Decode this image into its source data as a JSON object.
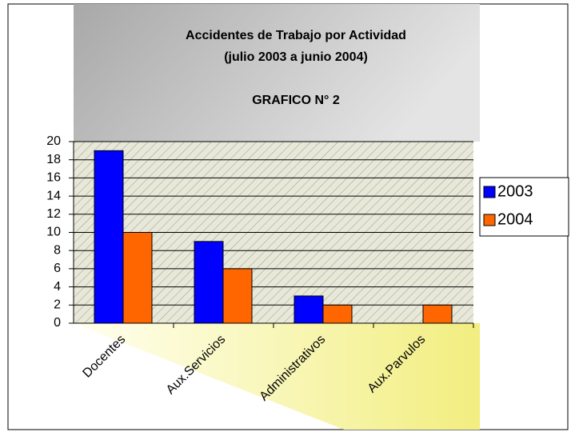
{
  "chart_data": {
    "type": "bar",
    "title": "Accidentes de Trabajo por Actividad",
    "subtitle": "(julio 2003 a junio 2004)",
    "annotation": "GRAFICO N° 2",
    "categories": [
      "Docentes",
      "Aux.Servicios",
      "Administrativos",
      "Aux.Parvulos"
    ],
    "series": [
      {
        "name": "2003",
        "color": "#0000ff",
        "values": [
          19,
          9,
          3,
          0
        ]
      },
      {
        "name": "2004",
        "color": "#ff6600",
        "values": [
          10,
          6,
          2,
          2
        ]
      }
    ],
    "ylim": [
      0,
      20
    ],
    "yticks": [
      0,
      2,
      4,
      6,
      8,
      10,
      12,
      14,
      16,
      18,
      20
    ],
    "grid": true,
    "legend": "right"
  }
}
